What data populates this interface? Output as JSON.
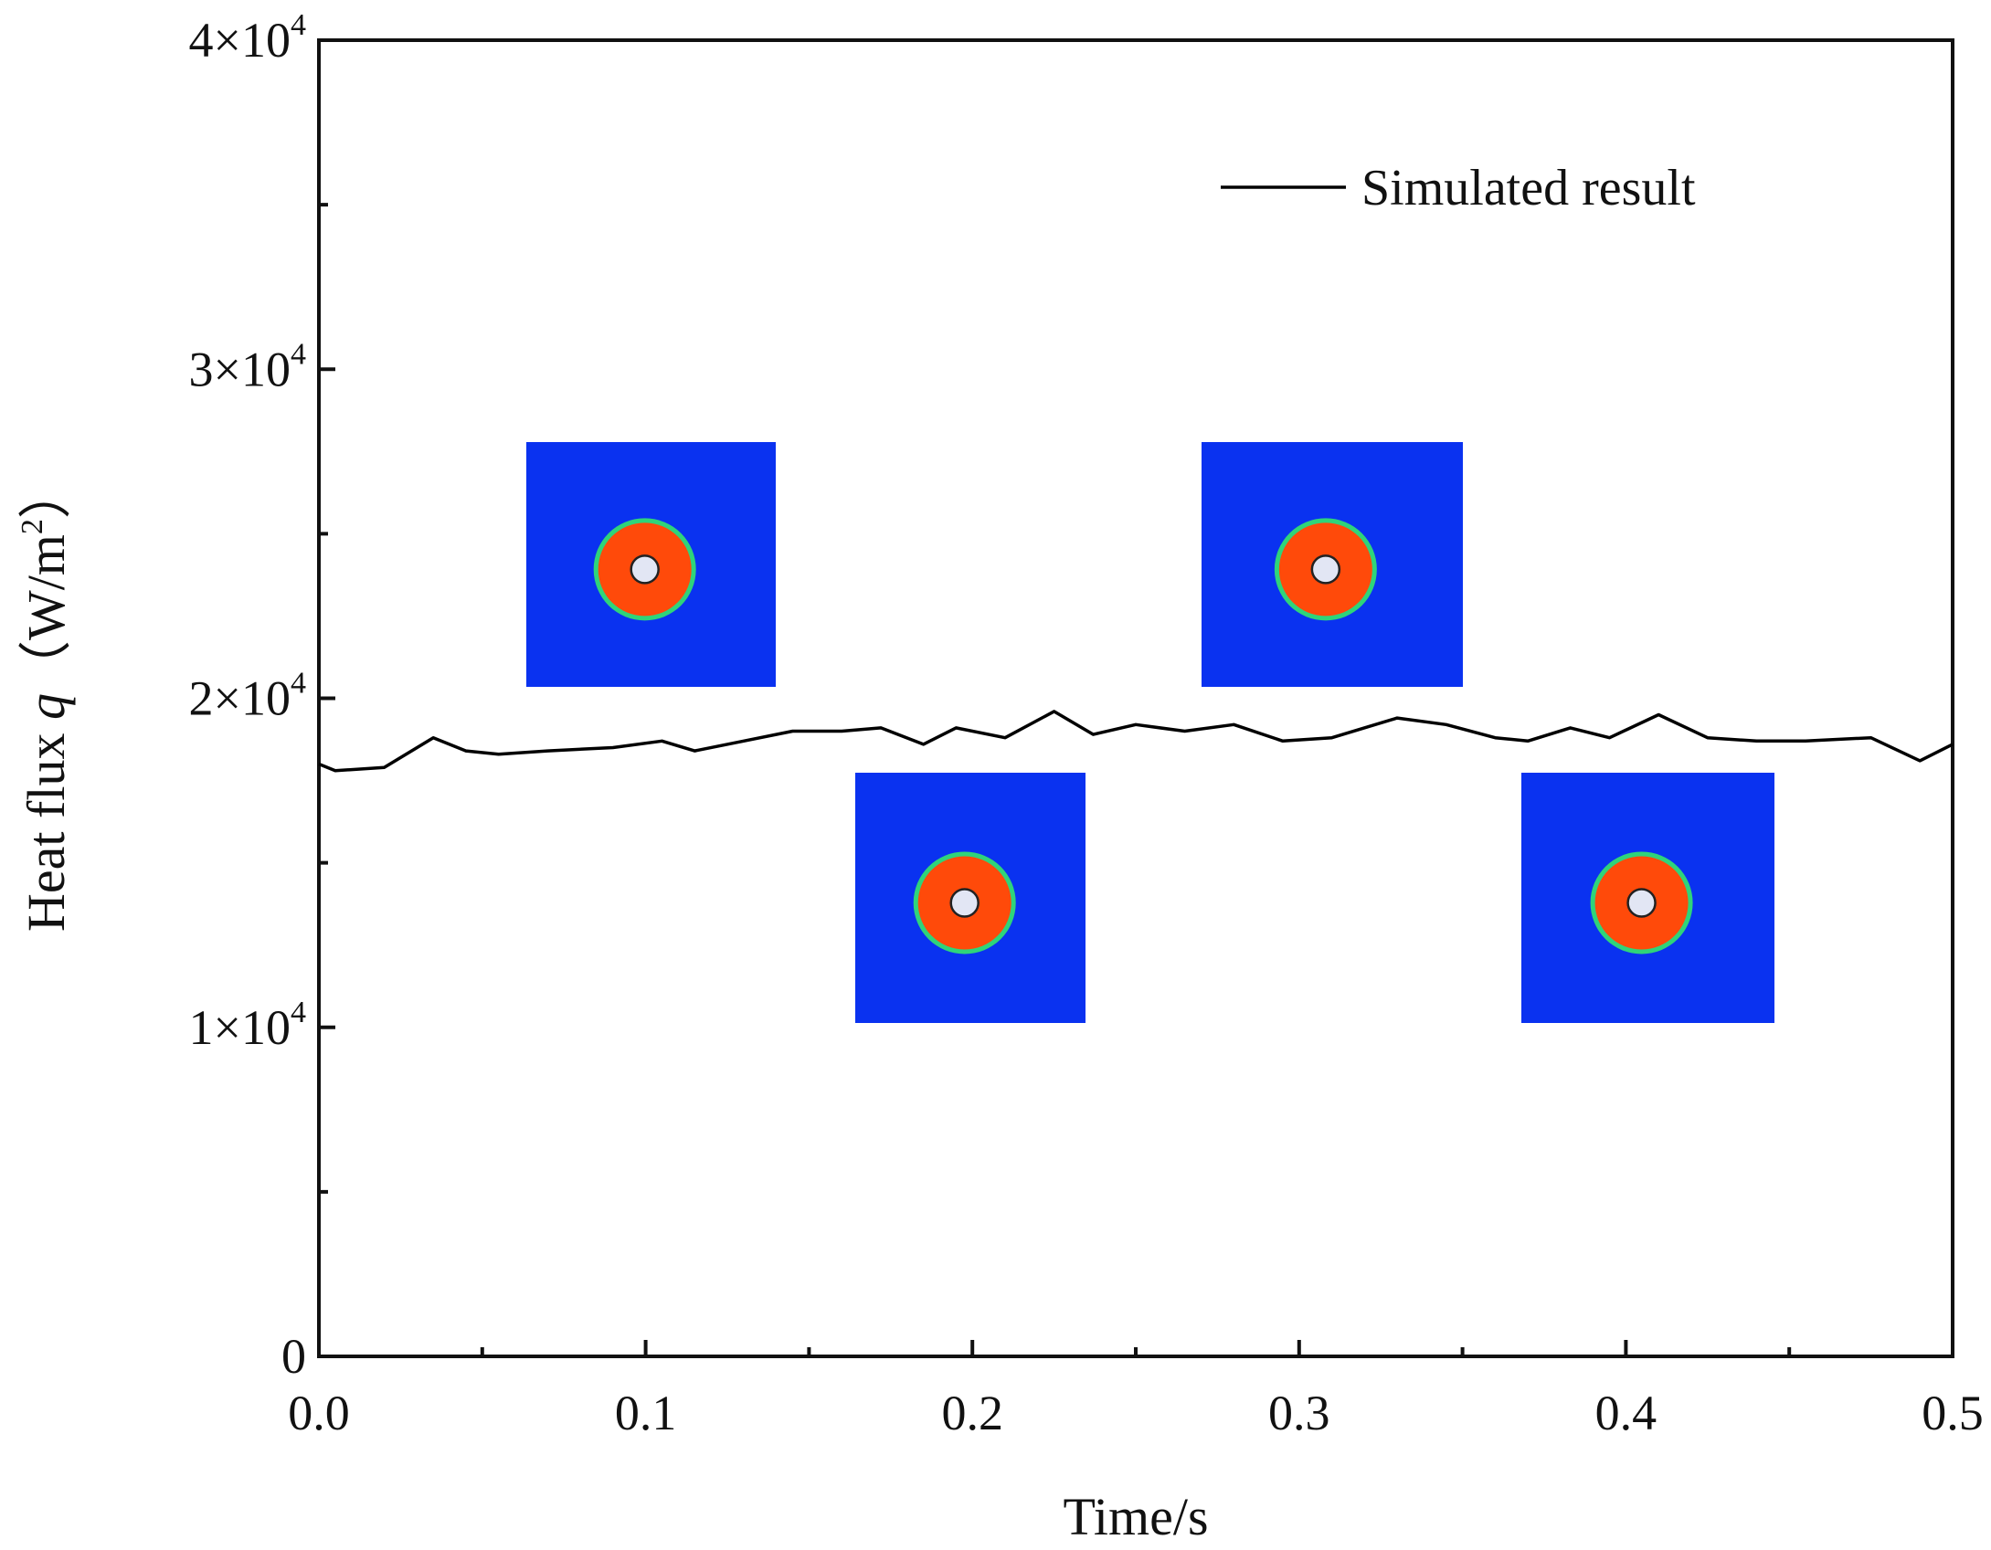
{
  "chart_data": {
    "type": "line",
    "title": "",
    "xlabel": "Time/s",
    "ylabel": {
      "prefix": "Heat flux ",
      "symbol": "q",
      "unit_open": "（W/m",
      "unit_sup": "2",
      "unit_close": "）"
    },
    "xlim": [
      0.0,
      0.5
    ],
    "ylim": [
      0,
      40000
    ],
    "x_ticks": [
      {
        "value": 0.0,
        "label": "0.0"
      },
      {
        "value": 0.1,
        "label": "0.1"
      },
      {
        "value": 0.2,
        "label": "0.2"
      },
      {
        "value": 0.3,
        "label": "0.3"
      },
      {
        "value": 0.4,
        "label": "0.4"
      },
      {
        "value": 0.5,
        "label": "0.5"
      }
    ],
    "x_minor_ticks": [
      0.05,
      0.15,
      0.25,
      0.35,
      0.45
    ],
    "y_ticks": [
      {
        "value": 0,
        "base": "0",
        "exp": ""
      },
      {
        "value": 10000,
        "base": "1×10",
        "exp": "4"
      },
      {
        "value": 20000,
        "base": "2×10",
        "exp": "4"
      },
      {
        "value": 30000,
        "base": "3×10",
        "exp": "4"
      },
      {
        "value": 40000,
        "base": "4×10",
        "exp": "4"
      }
    ],
    "y_minor_ticks": [
      5000,
      15000,
      25000,
      35000
    ],
    "grid": false,
    "legend": {
      "placement": "top-right",
      "entries": [
        "Simulated result"
      ]
    },
    "series": [
      {
        "name": "Simulated result",
        "color": "#000000",
        "x": [
          0.0,
          0.005,
          0.02,
          0.035,
          0.045,
          0.055,
          0.07,
          0.09,
          0.105,
          0.115,
          0.13,
          0.145,
          0.16,
          0.172,
          0.185,
          0.195,
          0.21,
          0.225,
          0.237,
          0.25,
          0.265,
          0.28,
          0.295,
          0.31,
          0.33,
          0.345,
          0.36,
          0.37,
          0.383,
          0.395,
          0.41,
          0.425,
          0.44,
          0.455,
          0.475,
          0.49,
          0.5
        ],
        "values": [
          18000,
          17800,
          17900,
          18800,
          18400,
          18300,
          18400,
          18500,
          18700,
          18400,
          18700,
          19000,
          19000,
          19100,
          18600,
          19100,
          18800,
          19600,
          18900,
          19200,
          19000,
          19200,
          18700,
          18800,
          19400,
          19200,
          18800,
          18700,
          19100,
          18800,
          19500,
          18800,
          18700,
          18700,
          18800,
          18100,
          18600
        ]
      }
    ],
    "insets": [
      {
        "name": "droplet-snapshot-1",
        "colors": {
          "background": "#0a32f0",
          "ring": "#ff4a0a",
          "core": "#e2e6f4",
          "edge": "#2fd47a"
        }
      },
      {
        "name": "droplet-snapshot-2",
        "colors": {
          "background": "#0a32f0",
          "ring": "#ff4a0a",
          "core": "#e2e6f4",
          "edge": "#2fd47a"
        }
      },
      {
        "name": "droplet-snapshot-3",
        "colors": {
          "background": "#0a32f0",
          "ring": "#ff4a0a",
          "core": "#e2e6f4",
          "edge": "#2fd47a"
        }
      },
      {
        "name": "droplet-snapshot-4",
        "colors": {
          "background": "#0a32f0",
          "ring": "#ff4a0a",
          "core": "#e2e6f4",
          "edge": "#2fd47a"
        }
      }
    ]
  }
}
